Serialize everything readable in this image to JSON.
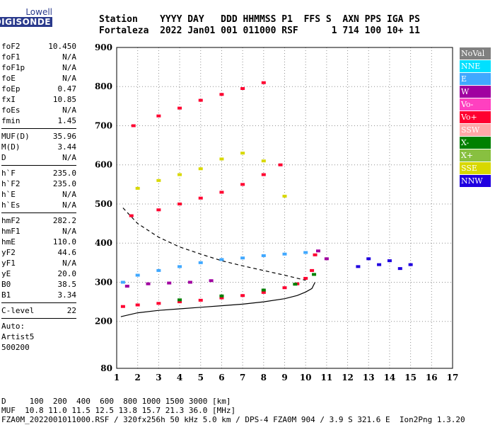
{
  "logo": {
    "line1": "Lowell",
    "line2": "DIGISONDE"
  },
  "header": {
    "line1": "Station    YYYY DAY   DDD HHMMSS P1  FFS S  AXN PPS IGA PS",
    "line2": "Fortaleza  2022 Jan01 001 011000 RSF      1 714 100 10+ 11"
  },
  "params": {
    "group1": [
      {
        "label": "foF2",
        "value": "10.450"
      },
      {
        "label": "foF1",
        "value": "N/A"
      },
      {
        "label": "foF1p",
        "value": "N/A"
      },
      {
        "label": "foE",
        "value": "N/A"
      },
      {
        "label": "foEp",
        "value": "0.47"
      },
      {
        "label": "fxI",
        "value": "10.85"
      },
      {
        "label": "foEs",
        "value": "N/A"
      },
      {
        "label": "fmin",
        "value": "1.45"
      }
    ],
    "group2": [
      {
        "label": "MUF(D)",
        "value": "35.96"
      },
      {
        "label": "M(D)",
        "value": "3.44"
      },
      {
        "label": "D",
        "value": "N/A"
      }
    ],
    "group3": [
      {
        "label": "h`F",
        "value": "235.0"
      },
      {
        "label": "h`F2",
        "value": "235.0"
      },
      {
        "label": "h`E",
        "value": "N/A"
      },
      {
        "label": "h`Es",
        "value": "N/A"
      }
    ],
    "group4": [
      {
        "label": "hmF2",
        "value": "282.2"
      },
      {
        "label": "hmF1",
        "value": "N/A"
      },
      {
        "label": "hmE",
        "value": "110.0"
      },
      {
        "label": "yF2",
        "value": "44.6"
      },
      {
        "label": "yF1",
        "value": "N/A"
      },
      {
        "label": "yE",
        "value": "20.0"
      },
      {
        "label": "B0",
        "value": "38.5"
      },
      {
        "label": "B1",
        "value": "3.34"
      }
    ],
    "group5": [
      {
        "label": "C-level",
        "value": "22"
      }
    ],
    "autoscale": {
      "line1": "Auto:",
      "line2": "Artist5",
      "line3": "500200"
    }
  },
  "legend": [
    {
      "label": "NoVal",
      "color": "#808080"
    },
    {
      "label": "NNE",
      "color": "#00e0ff"
    },
    {
      "label": "E",
      "color": "#40a8ff"
    },
    {
      "label": "W",
      "color": "#a000a0"
    },
    {
      "label": "Vo-",
      "color": "#ff40c0"
    },
    {
      "label": "Vo+",
      "color": "#ff0030"
    },
    {
      "label": "SSW",
      "color": "#ffa8a8"
    },
    {
      "label": "X-",
      "color": "#008000"
    },
    {
      "label": "X+",
      "color": "#88c040"
    },
    {
      "label": "SSE",
      "color": "#d8d800"
    },
    {
      "label": "NNW",
      "color": "#2000e0"
    }
  ],
  "footer": {
    "line1": "D     100  200  400  600  800 1000 1500 3000 [km]",
    "line2": "MUF  10.8 11.0 11.5 12.5 13.8 15.7 21.3 36.0 [MHz]",
    "line3": "FZA0M_2022001011000.RSF / 320fx256h 50 kHz 5.0 km / DPS-4 FZA0M 904 / 3.9 S 321.6 E  Ion2Png 1.3.20"
  },
  "chart_data": {
    "type": "scatter",
    "title": "",
    "xlabel": "",
    "ylabel": "",
    "xlim": [
      1,
      17
    ],
    "ylim": [
      80,
      900
    ],
    "x_ticks": [
      1,
      2,
      3,
      4,
      5,
      6,
      7,
      8,
      9,
      10,
      11,
      12,
      13,
      14,
      15,
      16,
      17
    ],
    "y_ticks": [
      80,
      200,
      300,
      400,
      500,
      600,
      700,
      800,
      900
    ],
    "grid": true,
    "legend_position": "right",
    "traces": [
      {
        "name": "Vo+",
        "color": "#ff0030",
        "points": [
          [
            1.3,
            238
          ],
          [
            2,
            242
          ],
          [
            3,
            246
          ],
          [
            4,
            250
          ],
          [
            5,
            254
          ],
          [
            6,
            260
          ],
          [
            7,
            266
          ],
          [
            8,
            274
          ],
          [
            9,
            286
          ],
          [
            9.6,
            296
          ],
          [
            10,
            310
          ],
          [
            10.3,
            330
          ],
          [
            10.45,
            370
          ]
        ]
      },
      {
        "name": "Vo+",
        "color": "#ff0030",
        "points": [
          [
            1.7,
            470
          ],
          [
            3,
            485
          ],
          [
            4,
            500
          ],
          [
            5,
            515
          ],
          [
            6,
            530
          ],
          [
            7,
            550
          ],
          [
            8,
            575
          ],
          [
            8.8,
            600
          ]
        ]
      },
      {
        "name": "Vo+",
        "color": "#ff0030",
        "points": [
          [
            1.8,
            700
          ],
          [
            3,
            725
          ],
          [
            4,
            745
          ],
          [
            5,
            765
          ],
          [
            6,
            780
          ],
          [
            7,
            795
          ],
          [
            8,
            810
          ]
        ]
      },
      {
        "name": "E",
        "color": "#40a8ff",
        "points": [
          [
            1.3,
            300
          ],
          [
            2,
            318
          ],
          [
            3,
            330
          ],
          [
            4,
            340
          ],
          [
            5,
            350
          ],
          [
            6,
            358
          ],
          [
            7,
            362
          ],
          [
            8,
            368
          ],
          [
            9,
            372
          ],
          [
            10,
            376
          ]
        ]
      },
      {
        "name": "W",
        "color": "#a000a0",
        "points": [
          [
            1.5,
            290
          ],
          [
            2.5,
            296
          ],
          [
            3.5,
            298
          ],
          [
            4.5,
            300
          ],
          [
            5.5,
            304
          ],
          [
            10.6,
            380
          ],
          [
            11,
            360
          ]
        ]
      },
      {
        "name": "X-",
        "color": "#008000",
        "points": [
          [
            4,
            255
          ],
          [
            6,
            265
          ],
          [
            8,
            280
          ],
          [
            9.5,
            295
          ],
          [
            10.4,
            320
          ]
        ]
      },
      {
        "name": "NNW",
        "color": "#2000e0",
        "points": [
          [
            12.5,
            340
          ],
          [
            13,
            360
          ],
          [
            13.5,
            345
          ],
          [
            14,
            355
          ],
          [
            14.5,
            335
          ],
          [
            15,
            345
          ]
        ]
      },
      {
        "name": "SSE",
        "color": "#d8d800",
        "points": [
          [
            2,
            540
          ],
          [
            3,
            560
          ],
          [
            4,
            575
          ],
          [
            5,
            590
          ],
          [
            6,
            615
          ],
          [
            7,
            630
          ],
          [
            8,
            610
          ],
          [
            9,
            520
          ]
        ]
      }
    ],
    "curves": [
      {
        "name": "profile",
        "style": "solid",
        "points": [
          [
            1.2,
            212
          ],
          [
            2,
            222
          ],
          [
            3,
            228
          ],
          [
            4,
            232
          ],
          [
            5,
            236
          ],
          [
            6,
            240
          ],
          [
            7,
            244
          ],
          [
            8,
            250
          ],
          [
            9,
            258
          ],
          [
            9.6,
            266
          ],
          [
            10,
            275
          ],
          [
            10.3,
            284
          ],
          [
            10.45,
            300
          ]
        ]
      },
      {
        "name": "MUF",
        "style": "dashed",
        "points": [
          [
            1.3,
            490
          ],
          [
            2,
            450
          ],
          [
            3,
            415
          ],
          [
            4,
            390
          ],
          [
            5,
            372
          ],
          [
            6,
            355
          ],
          [
            7,
            342
          ],
          [
            8,
            330
          ],
          [
            9,
            318
          ],
          [
            10,
            305
          ]
        ]
      }
    ]
  }
}
